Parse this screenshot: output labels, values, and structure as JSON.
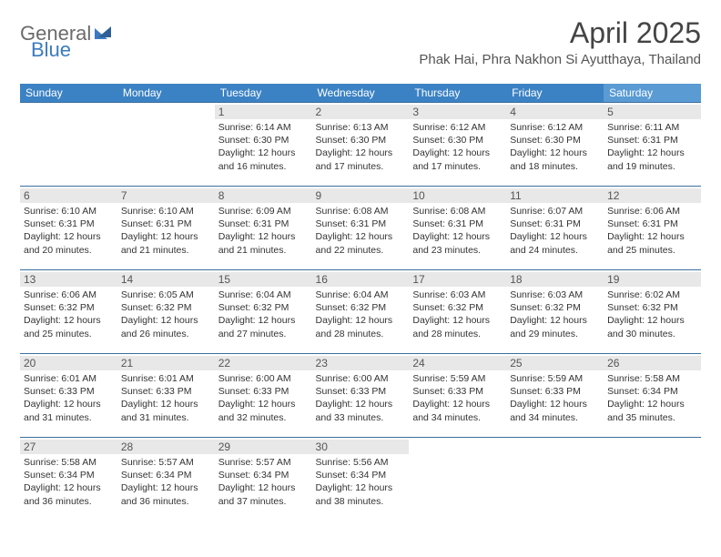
{
  "logo": {
    "part1": "General",
    "part2": "Blue"
  },
  "title": "April 2025",
  "location": "Phak Hai, Phra Nakhon Si Ayutthaya, Thailand",
  "colors": {
    "header_bg": "#3b82c4",
    "header_sat_bg": "#5a9bd4",
    "row_border": "#3b6fa0",
    "daynum_bg": "#e8e8e8",
    "logo_gray": "#6b6b6b",
    "logo_blue": "#3b7bbf"
  },
  "day_headers": [
    "Sunday",
    "Monday",
    "Tuesday",
    "Wednesday",
    "Thursday",
    "Friday",
    "Saturday"
  ],
  "weeks": [
    [
      {
        "empty": true
      },
      {
        "empty": true
      },
      {
        "num": "1",
        "sunrise": "Sunrise: 6:14 AM",
        "sunset": "Sunset: 6:30 PM",
        "daylight": "Daylight: 12 hours and 16 minutes."
      },
      {
        "num": "2",
        "sunrise": "Sunrise: 6:13 AM",
        "sunset": "Sunset: 6:30 PM",
        "daylight": "Daylight: 12 hours and 17 minutes."
      },
      {
        "num": "3",
        "sunrise": "Sunrise: 6:12 AM",
        "sunset": "Sunset: 6:30 PM",
        "daylight": "Daylight: 12 hours and 17 minutes."
      },
      {
        "num": "4",
        "sunrise": "Sunrise: 6:12 AM",
        "sunset": "Sunset: 6:30 PM",
        "daylight": "Daylight: 12 hours and 18 minutes."
      },
      {
        "num": "5",
        "sunrise": "Sunrise: 6:11 AM",
        "sunset": "Sunset: 6:31 PM",
        "daylight": "Daylight: 12 hours and 19 minutes."
      }
    ],
    [
      {
        "num": "6",
        "sunrise": "Sunrise: 6:10 AM",
        "sunset": "Sunset: 6:31 PM",
        "daylight": "Daylight: 12 hours and 20 minutes."
      },
      {
        "num": "7",
        "sunrise": "Sunrise: 6:10 AM",
        "sunset": "Sunset: 6:31 PM",
        "daylight": "Daylight: 12 hours and 21 minutes."
      },
      {
        "num": "8",
        "sunrise": "Sunrise: 6:09 AM",
        "sunset": "Sunset: 6:31 PM",
        "daylight": "Daylight: 12 hours and 21 minutes."
      },
      {
        "num": "9",
        "sunrise": "Sunrise: 6:08 AM",
        "sunset": "Sunset: 6:31 PM",
        "daylight": "Daylight: 12 hours and 22 minutes."
      },
      {
        "num": "10",
        "sunrise": "Sunrise: 6:08 AM",
        "sunset": "Sunset: 6:31 PM",
        "daylight": "Daylight: 12 hours and 23 minutes."
      },
      {
        "num": "11",
        "sunrise": "Sunrise: 6:07 AM",
        "sunset": "Sunset: 6:31 PM",
        "daylight": "Daylight: 12 hours and 24 minutes."
      },
      {
        "num": "12",
        "sunrise": "Sunrise: 6:06 AM",
        "sunset": "Sunset: 6:31 PM",
        "daylight": "Daylight: 12 hours and 25 minutes."
      }
    ],
    [
      {
        "num": "13",
        "sunrise": "Sunrise: 6:06 AM",
        "sunset": "Sunset: 6:32 PM",
        "daylight": "Daylight: 12 hours and 25 minutes."
      },
      {
        "num": "14",
        "sunrise": "Sunrise: 6:05 AM",
        "sunset": "Sunset: 6:32 PM",
        "daylight": "Daylight: 12 hours and 26 minutes."
      },
      {
        "num": "15",
        "sunrise": "Sunrise: 6:04 AM",
        "sunset": "Sunset: 6:32 PM",
        "daylight": "Daylight: 12 hours and 27 minutes."
      },
      {
        "num": "16",
        "sunrise": "Sunrise: 6:04 AM",
        "sunset": "Sunset: 6:32 PM",
        "daylight": "Daylight: 12 hours and 28 minutes."
      },
      {
        "num": "17",
        "sunrise": "Sunrise: 6:03 AM",
        "sunset": "Sunset: 6:32 PM",
        "daylight": "Daylight: 12 hours and 28 minutes."
      },
      {
        "num": "18",
        "sunrise": "Sunrise: 6:03 AM",
        "sunset": "Sunset: 6:32 PM",
        "daylight": "Daylight: 12 hours and 29 minutes."
      },
      {
        "num": "19",
        "sunrise": "Sunrise: 6:02 AM",
        "sunset": "Sunset: 6:32 PM",
        "daylight": "Daylight: 12 hours and 30 minutes."
      }
    ],
    [
      {
        "num": "20",
        "sunrise": "Sunrise: 6:01 AM",
        "sunset": "Sunset: 6:33 PM",
        "daylight": "Daylight: 12 hours and 31 minutes."
      },
      {
        "num": "21",
        "sunrise": "Sunrise: 6:01 AM",
        "sunset": "Sunset: 6:33 PM",
        "daylight": "Daylight: 12 hours and 31 minutes."
      },
      {
        "num": "22",
        "sunrise": "Sunrise: 6:00 AM",
        "sunset": "Sunset: 6:33 PM",
        "daylight": "Daylight: 12 hours and 32 minutes."
      },
      {
        "num": "23",
        "sunrise": "Sunrise: 6:00 AM",
        "sunset": "Sunset: 6:33 PM",
        "daylight": "Daylight: 12 hours and 33 minutes."
      },
      {
        "num": "24",
        "sunrise": "Sunrise: 5:59 AM",
        "sunset": "Sunset: 6:33 PM",
        "daylight": "Daylight: 12 hours and 34 minutes."
      },
      {
        "num": "25",
        "sunrise": "Sunrise: 5:59 AM",
        "sunset": "Sunset: 6:33 PM",
        "daylight": "Daylight: 12 hours and 34 minutes."
      },
      {
        "num": "26",
        "sunrise": "Sunrise: 5:58 AM",
        "sunset": "Sunset: 6:34 PM",
        "daylight": "Daylight: 12 hours and 35 minutes."
      }
    ],
    [
      {
        "num": "27",
        "sunrise": "Sunrise: 5:58 AM",
        "sunset": "Sunset: 6:34 PM",
        "daylight": "Daylight: 12 hours and 36 minutes."
      },
      {
        "num": "28",
        "sunrise": "Sunrise: 5:57 AM",
        "sunset": "Sunset: 6:34 PM",
        "daylight": "Daylight: 12 hours and 36 minutes."
      },
      {
        "num": "29",
        "sunrise": "Sunrise: 5:57 AM",
        "sunset": "Sunset: 6:34 PM",
        "daylight": "Daylight: 12 hours and 37 minutes."
      },
      {
        "num": "30",
        "sunrise": "Sunrise: 5:56 AM",
        "sunset": "Sunset: 6:34 PM",
        "daylight": "Daylight: 12 hours and 38 minutes."
      },
      {
        "empty": true
      },
      {
        "empty": true
      },
      {
        "empty": true
      }
    ]
  ]
}
